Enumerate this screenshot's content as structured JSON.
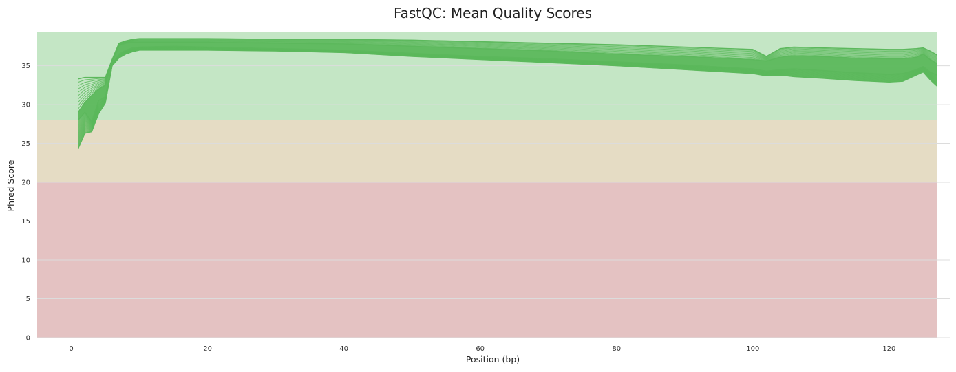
{
  "chart_data": {
    "type": "line",
    "title": "FastQC: Mean Quality Scores",
    "xlabel": "Position (bp)",
    "ylabel": "Phred Score",
    "xlim": [
      -5,
      129
    ],
    "ylim": [
      0,
      39.3
    ],
    "x_ticks": [
      0,
      20,
      40,
      60,
      80,
      100,
      120
    ],
    "y_ticks": [
      0,
      5,
      10,
      15,
      20,
      25,
      30,
      35
    ],
    "grid": "horizontal",
    "legend": "none",
    "line_color": "#5cb85c",
    "bands": [
      {
        "from": 0,
        "to": 20,
        "color": "#e4c2c2"
      },
      {
        "from": 20,
        "to": 28,
        "color": "#e5dcc4"
      },
      {
        "from": 28,
        "to": 39.3,
        "color": "#c4e6c5"
      }
    ],
    "band_x_range": [
      -5,
      127
    ],
    "series": [
      {
        "x": [
          1,
          2,
          3,
          4,
          5,
          6,
          7,
          8,
          9,
          10,
          15,
          20,
          30,
          40,
          50,
          60,
          70,
          80,
          90,
          100,
          102,
          104,
          106,
          110,
          115,
          120,
          122,
          124,
          125,
          126,
          127
        ],
        "values": [
          33.3,
          33.5,
          33.5,
          33.5,
          33.5,
          35.8,
          37.9,
          38.2,
          38.4,
          38.5,
          38.5,
          38.5,
          38.4,
          38.4,
          38.3,
          38.1,
          37.9,
          37.7,
          37.4,
          37.1,
          36.2,
          37.2,
          37.4,
          37.3,
          37.2,
          37.1,
          37.1,
          37.2,
          37.3,
          36.9,
          36.4
        ]
      },
      {
        "x": [
          1,
          2,
          3,
          4,
          5,
          6,
          7,
          8,
          9,
          10,
          15,
          20,
          30,
          40,
          50,
          60,
          70,
          80,
          90,
          100,
          102,
          104,
          106,
          110,
          115,
          120,
          122,
          124,
          125,
          126,
          127
        ],
        "values": [
          29.0,
          30.3,
          31.2,
          32.0,
          32.5,
          35.5,
          37.6,
          37.9,
          38.0,
          38.0,
          38.0,
          38.0,
          37.9,
          37.8,
          37.5,
          37.2,
          36.9,
          36.5,
          36.2,
          35.8,
          35.6,
          36.1,
          36.3,
          36.2,
          36.0,
          35.9,
          35.9,
          36.1,
          36.5,
          35.8,
          35.3
        ]
      },
      {
        "x": [
          1,
          2,
          3,
          4,
          5,
          6,
          7,
          8,
          9,
          10,
          15,
          20,
          30,
          40,
          50,
          60,
          70,
          80,
          90,
          100,
          102,
          104,
          106,
          110,
          115,
          120,
          122,
          124,
          125,
          126,
          127
        ],
        "values": [
          28.0,
          29.0,
          27.8,
          30.5,
          31.0,
          35.2,
          36.5,
          37.0,
          37.3,
          37.4,
          37.5,
          37.4,
          37.2,
          37.0,
          36.6,
          36.2,
          35.9,
          35.5,
          35.1,
          34.6,
          34.3,
          34.5,
          34.6,
          34.4,
          34.1,
          33.9,
          34.0,
          34.5,
          34.9,
          34.2,
          33.8
        ]
      },
      {
        "x": [
          1,
          2,
          3,
          4,
          5,
          6,
          7,
          8,
          9,
          10,
          15,
          20,
          30,
          40,
          50,
          60,
          70,
          80,
          90,
          100,
          102,
          104,
          106,
          110,
          115,
          120,
          122,
          124,
          125,
          126,
          127
        ],
        "values": [
          24.3,
          26.3,
          26.5,
          28.8,
          30.2,
          35.0,
          36.0,
          36.5,
          36.8,
          37.0,
          37.0,
          37.0,
          36.9,
          36.7,
          36.2,
          35.8,
          35.4,
          35.0,
          34.5,
          34.0,
          33.7,
          33.8,
          33.6,
          33.4,
          33.1,
          32.9,
          33.0,
          33.8,
          34.2,
          33.2,
          32.4
        ]
      }
    ]
  }
}
